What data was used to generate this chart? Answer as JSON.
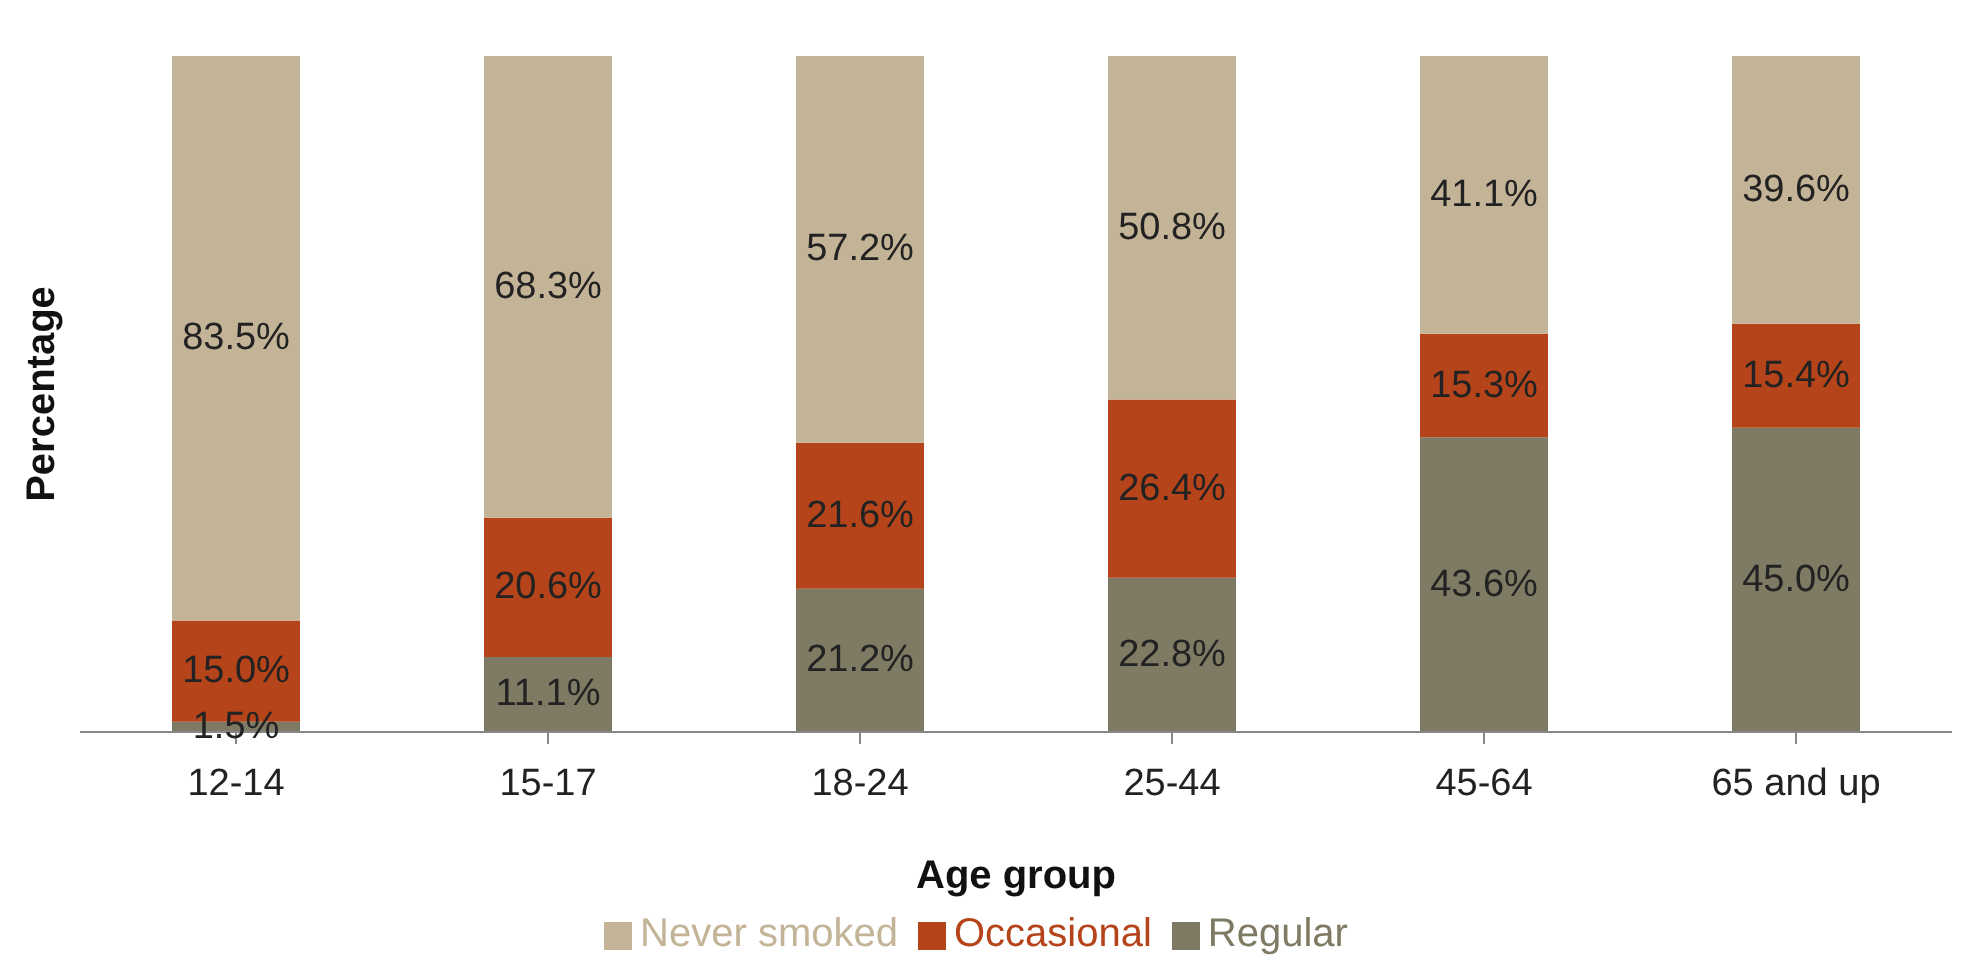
{
  "chart_data": {
    "type": "bar",
    "stacked": true,
    "xlabel": "Age group",
    "ylabel": "Percentage",
    "categories": [
      "12-14",
      "15-17",
      "18-24",
      "25-44",
      "45-64",
      "65 and up"
    ],
    "legend": "bottom",
    "grid": false,
    "series": [
      {
        "name": "Regular",
        "color": "#7f7a63",
        "values": [
          1.5,
          11.1,
          21.2,
          22.8,
          43.6,
          45.0
        ],
        "value_labels": [
          "1.5%",
          "11.1%",
          "21.2%",
          "22.8%",
          "43.6%",
          "45.0%"
        ]
      },
      {
        "name": "Occasional",
        "color": "#b5441a",
        "values": [
          15.0,
          20.6,
          21.6,
          26.4,
          15.3,
          15.4
        ],
        "value_labels": [
          "15.0%",
          "20.6%",
          "21.6%",
          "26.4%",
          "15.3%",
          "15.4%"
        ]
      },
      {
        "name": "Never smoked",
        "color": "#c4b497",
        "values": [
          83.5,
          68.3,
          57.2,
          50.8,
          41.1,
          39.6
        ],
        "value_labels": [
          "83.5%",
          "68.3%",
          "57.2%",
          "50.8%",
          "41.1%",
          "39.6%"
        ]
      }
    ]
  }
}
